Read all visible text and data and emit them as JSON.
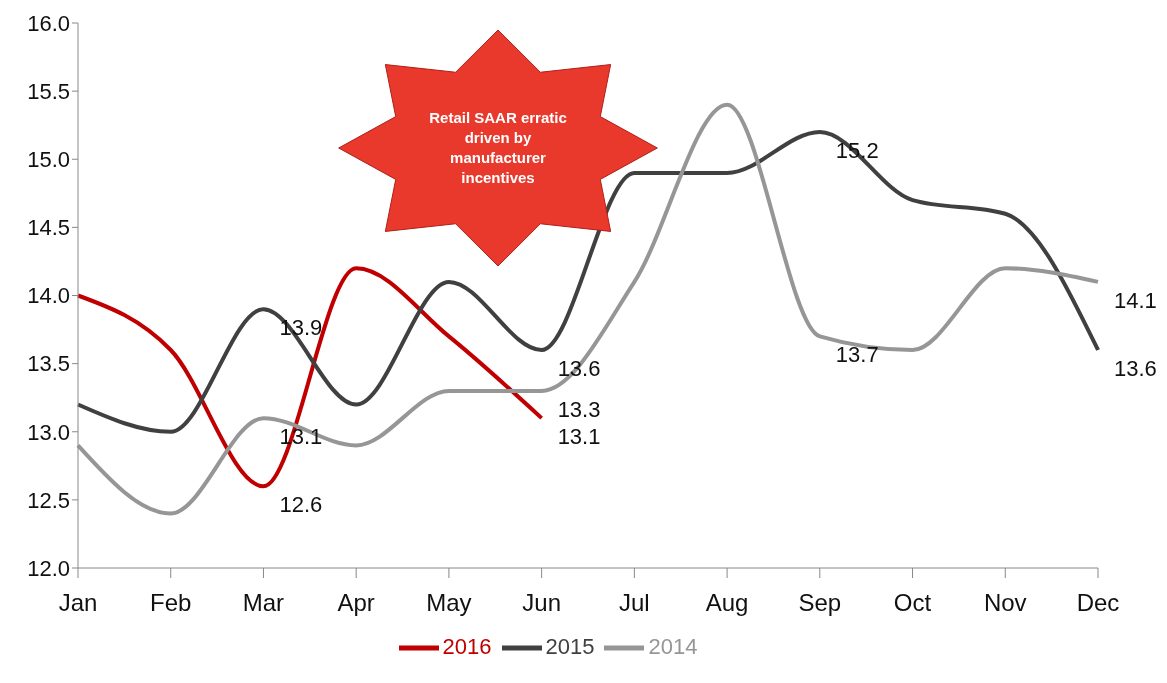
{
  "chart_data": {
    "type": "line",
    "categories": [
      "Jan",
      "Feb",
      "Mar",
      "Apr",
      "May",
      "Jun",
      "Jul",
      "Aug",
      "Sep",
      "Oct",
      "Nov",
      "Dec"
    ],
    "series": [
      {
        "name": "2016",
        "color": "#c00000",
        "values": [
          14.0,
          13.6,
          12.6,
          14.2,
          13.7,
          13.1,
          null,
          null,
          null,
          null,
          null,
          null
        ],
        "value_labels": [
          null,
          null,
          "12.6",
          null,
          null,
          "13.1",
          null,
          null,
          null,
          null,
          null,
          null
        ]
      },
      {
        "name": "2015",
        "color": "#404040",
        "values": [
          13.2,
          13.0,
          13.9,
          13.2,
          14.1,
          13.6,
          14.9,
          14.9,
          15.2,
          14.7,
          14.6,
          13.6
        ],
        "value_labels": [
          null,
          null,
          "13.9",
          null,
          null,
          "13.6",
          null,
          null,
          "15.2",
          null,
          null,
          "13.6"
        ]
      },
      {
        "name": "2014",
        "color": "#969696",
        "values": [
          12.9,
          12.4,
          13.1,
          12.9,
          13.3,
          13.3,
          14.1,
          15.4,
          13.7,
          13.6,
          14.2,
          14.1
        ],
        "value_labels": [
          null,
          null,
          "13.1",
          null,
          null,
          "13.3",
          null,
          null,
          "13.7",
          null,
          null,
          "14.1"
        ]
      }
    ],
    "ylim": [
      12,
      16
    ],
    "yticks": [
      {
        "value": 12,
        "label": "12.0"
      },
      {
        "value": 12.5,
        "label": "12.5"
      },
      {
        "value": 13,
        "label": "13.0"
      },
      {
        "value": 13.5,
        "label": "13.5"
      },
      {
        "value": 14,
        "label": "14.0"
      },
      {
        "value": 14.5,
        "label": "14.5"
      },
      {
        "value": 15,
        "label": "15.0"
      },
      {
        "value": 15.5,
        "label": "15.5"
      },
      {
        "value": 16,
        "label": "16.0"
      }
    ],
    "annotations": [
      "Retail SAAR erratic driven by manufacturer incentives"
    ],
    "legend": "bottom",
    "grid": false,
    "line_style": "solid"
  }
}
